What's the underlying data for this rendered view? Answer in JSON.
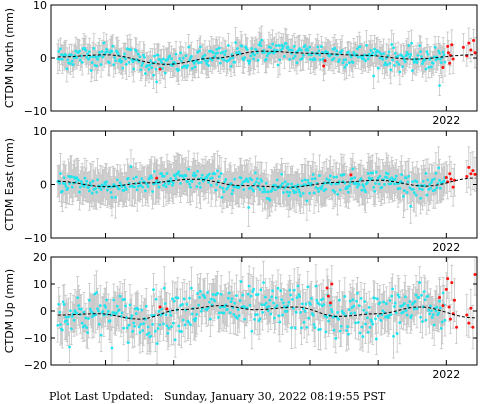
{
  "chart_data": [
    {
      "type": "scatter",
      "ylabel": "CTDM North (mm)",
      "ylim": [
        -10,
        10
      ],
      "yticks": [
        "10",
        "0",
        "−10"
      ],
      "xticks": [
        "2022"
      ],
      "xlim": [
        2016.2,
        2022.45
      ],
      "series": [
        {
          "values_ref": "daily (cyan) with error bars",
          "color": "#00e5ff"
        },
        {
          "values_ref": "rapid (red)",
          "color": "#ff0000"
        },
        {
          "values_ref": "model fit (dashed)",
          "color": "#000000"
        }
      ],
      "trend": {
        "x": [
          2016.3,
          2017.0,
          2017.9,
          2018.6,
          2019.3,
          2020.0,
          2020.8,
          2021.5,
          2022.4
        ],
        "y": [
          0.2,
          0.6,
          -1.2,
          0.0,
          1.3,
          0.9,
          0.5,
          -0.2,
          0.6
        ]
      },
      "scatter_sd": 1.1,
      "errbar_half": 2.3,
      "outliers": [
        {
          "x": 2017.75,
          "y": -4.5
        },
        {
          "x": 2021.9,
          "y": -5.2
        }
      ],
      "red_points": [
        {
          "x": 2017.8,
          "y": -2.1
        },
        {
          "x": 2020.2,
          "y": -1.5
        },
        {
          "x": 2020.22,
          "y": -0.5
        },
        {
          "x": 2021.95,
          "y": -1.8
        },
        {
          "x": 2022.02,
          "y": 2.2
        },
        {
          "x": 2022.03,
          "y": 1.0
        },
        {
          "x": 2022.05,
          "y": -1.0
        },
        {
          "x": 2022.06,
          "y": 0.5
        },
        {
          "x": 2022.08,
          "y": 2.5
        },
        {
          "x": 2022.1,
          "y": -0.2
        },
        {
          "x": 2022.25,
          "y": 2.0
        },
        {
          "x": 2022.3,
          "y": 0.4
        },
        {
          "x": 2022.33,
          "y": 2.8
        },
        {
          "x": 2022.36,
          "y": 1.5
        },
        {
          "x": 2022.4,
          "y": 3.3
        },
        {
          "x": 2022.42,
          "y": 1.0
        }
      ]
    },
    {
      "type": "scatter",
      "ylabel": "CTDM East (mm)",
      "ylim": [
        -10,
        10
      ],
      "yticks": [
        "10",
        "0",
        "−10"
      ],
      "xticks": [
        "2022"
      ],
      "xlim": [
        2016.2,
        2022.45
      ],
      "trend": {
        "x": [
          2016.3,
          2017.0,
          2017.6,
          2018.3,
          2019.0,
          2019.7,
          2020.4,
          2021.0,
          2021.7,
          2022.4
        ],
        "y": [
          0.6,
          -0.4,
          0.3,
          1.0,
          -0.2,
          -0.5,
          0.4,
          0.8,
          -0.3,
          1.2
        ]
      },
      "scatter_sd": 1.0,
      "errbar_half": 3.2,
      "outliers": [
        {
          "x": 2019.1,
          "y": -4.3
        }
      ],
      "red_points": [
        {
          "x": 2017.75,
          "y": 1.2
        },
        {
          "x": 2020.6,
          "y": 1.8
        },
        {
          "x": 2022.0,
          "y": 1.3
        },
        {
          "x": 2022.02,
          "y": 0.5
        },
        {
          "x": 2022.05,
          "y": 2.0
        },
        {
          "x": 2022.07,
          "y": 1.0
        },
        {
          "x": 2022.1,
          "y": -0.5
        },
        {
          "x": 2022.12,
          "y": 0.8
        },
        {
          "x": 2022.3,
          "y": 1.5
        },
        {
          "x": 2022.33,
          "y": 3.2
        },
        {
          "x": 2022.36,
          "y": 2.0
        },
        {
          "x": 2022.39,
          "y": 2.6
        },
        {
          "x": 2022.42,
          "y": 1.9
        }
      ]
    },
    {
      "type": "scatter",
      "ylabel": "CTDM Up (mm)",
      "ylim": [
        -20,
        20
      ],
      "yticks": [
        "20",
        "10",
        "0",
        "−10",
        "−20"
      ],
      "xticks": [
        "2022"
      ],
      "xlim": [
        2016.2,
        2022.45
      ],
      "trend": {
        "x": [
          2016.3,
          2016.9,
          2017.5,
          2018.1,
          2018.7,
          2019.2,
          2019.8,
          2020.4,
          2021.0,
          2021.6,
          2022.4
        ],
        "y": [
          -1.5,
          -1.0,
          -3.0,
          0.5,
          2.0,
          0.5,
          1.5,
          -2.0,
          -1.0,
          1.5,
          -2.5
        ]
      },
      "scatter_sd": 4.2,
      "errbar_half": 6.5,
      "outliers": [],
      "red_points": [
        {
          "x": 2017.8,
          "y": 1.5
        },
        {
          "x": 2017.9,
          "y": 0.8
        },
        {
          "x": 2020.25,
          "y": 8.5
        },
        {
          "x": 2020.27,
          "y": 5.5
        },
        {
          "x": 2020.3,
          "y": 3.0
        },
        {
          "x": 2020.32,
          "y": 10.0
        },
        {
          "x": 2021.9,
          "y": 5.0
        },
        {
          "x": 2021.95,
          "y": 2.0
        },
        {
          "x": 2022.0,
          "y": 8.0
        },
        {
          "x": 2022.02,
          "y": 12.0
        },
        {
          "x": 2022.04,
          "y": 1.5
        },
        {
          "x": 2022.06,
          "y": -3.0
        },
        {
          "x": 2022.08,
          "y": 10.5
        },
        {
          "x": 2022.1,
          "y": -1.0
        },
        {
          "x": 2022.12,
          "y": 4.0
        },
        {
          "x": 2022.15,
          "y": -6.0
        },
        {
          "x": 2022.3,
          "y": -1.5
        },
        {
          "x": 2022.33,
          "y": -4.5
        },
        {
          "x": 2022.36,
          "y": 1.0
        },
        {
          "x": 2022.39,
          "y": -6.0
        },
        {
          "x": 2022.42,
          "y": 13.5
        }
      ]
    }
  ],
  "colors": {
    "daily": "#22e4ee",
    "rapid": "#ff1111",
    "errbar": "#c4c4c4",
    "fit": "#000000"
  },
  "footer": "Plot Last Updated:   Sunday, January 30, 2022 08:19:55 PST"
}
